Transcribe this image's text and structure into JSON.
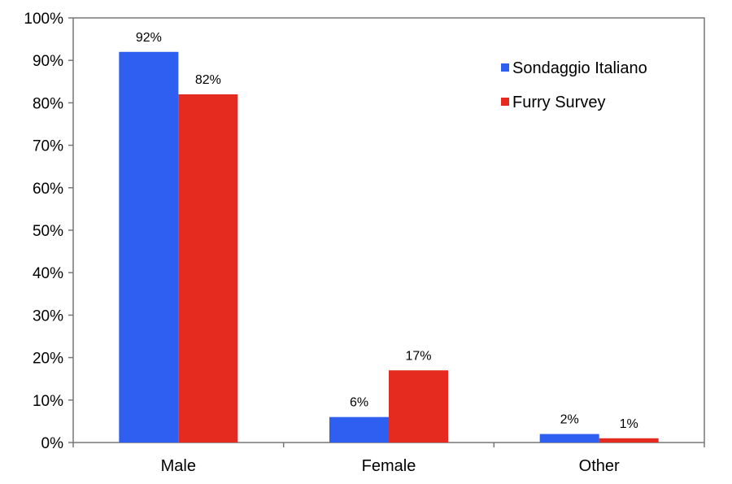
{
  "chart_data": {
    "type": "bar",
    "categories": [
      "Male",
      "Female",
      "Other"
    ],
    "series": [
      {
        "name": "Sondaggio Italiano",
        "values": [
          92,
          6,
          2
        ],
        "color": "#2f5ff0",
        "labels": [
          "92%",
          "6%",
          "2%"
        ]
      },
      {
        "name": "Furry Survey",
        "values": [
          82,
          17,
          1
        ],
        "color": "#e52b20",
        "labels": [
          "82%",
          "17%",
          "1%"
        ]
      }
    ],
    "ylim": [
      0,
      100
    ],
    "yticks": [
      0,
      10,
      20,
      30,
      40,
      50,
      60,
      70,
      80,
      90,
      100
    ],
    "ytick_labels": [
      "0%",
      "10%",
      "20%",
      "30%",
      "40%",
      "50%",
      "60%",
      "70%",
      "80%",
      "90%",
      "100%"
    ],
    "grid": false,
    "legend_position": "top-right",
    "title": "",
    "xlabel": "",
    "ylabel": ""
  }
}
